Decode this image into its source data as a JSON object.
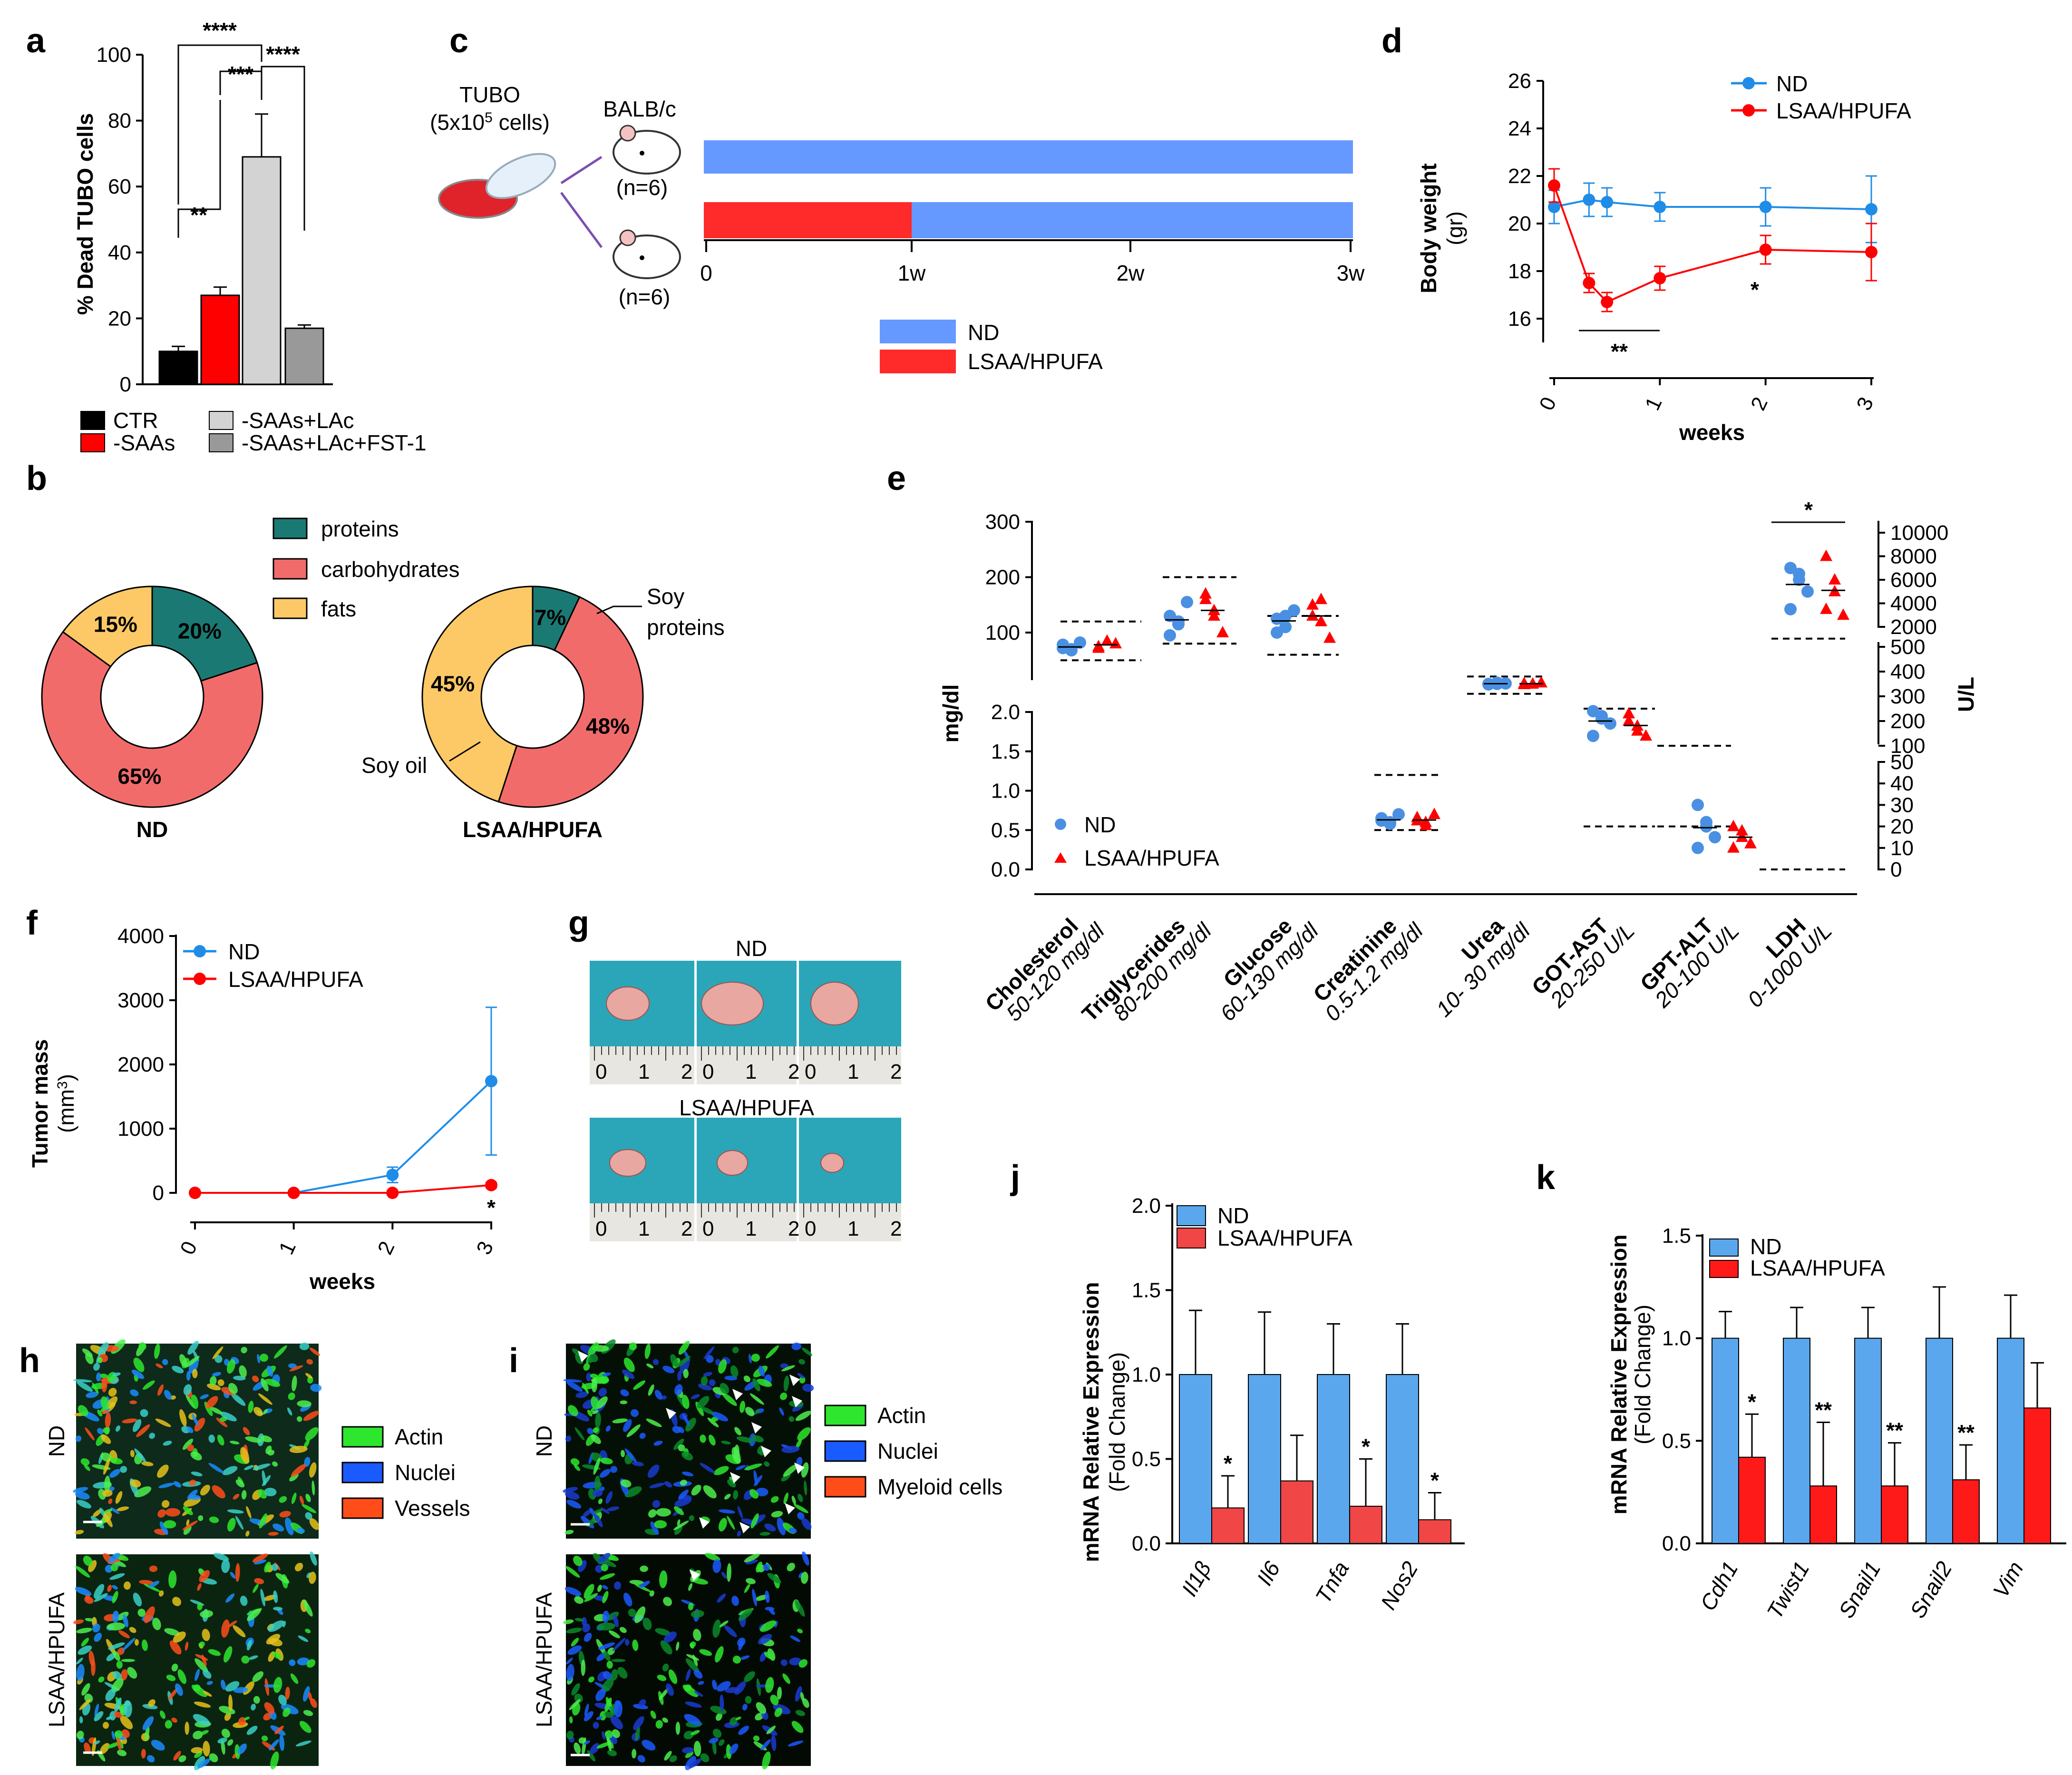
{
  "panels": {
    "a": "a",
    "b": "b",
    "c": "c",
    "d": "d",
    "e": "e",
    "f": "f",
    "g": "g",
    "h": "h",
    "i": "i",
    "j": "j",
    "k": "k"
  },
  "chart_data": [
    {
      "id": "a",
      "type": "bar",
      "categories": [
        "CTR",
        "-SAAs",
        "-SAAs+LAc",
        "-SAAs+LAc+FST-1"
      ],
      "values": [
        10,
        27,
        69,
        17
      ],
      "errors": [
        1.5,
        2.5,
        13,
        1
      ],
      "colors": [
        "#000000",
        "#ff0000",
        "#d3d3d3",
        "#999999"
      ],
      "ylabel": "% Dead TUBO cells",
      "ylim": [
        0,
        100
      ],
      "yticks": [
        "0",
        "20",
        "40",
        "60",
        "80",
        "100"
      ],
      "significance": [
        "****",
        "***",
        "****",
        "**"
      ]
    },
    {
      "id": "b",
      "type": "pie",
      "legend": [
        "proteins",
        "carbohydrates",
        "fats"
      ],
      "colors": [
        "#1a7a73",
        "#f26b6b",
        "#fcc966"
      ],
      "charts": [
        {
          "name": "ND",
          "slices": [
            20,
            65,
            15
          ],
          "labels": [
            "20%",
            "65%",
            "15%"
          ]
        },
        {
          "name": "LSAA/HPUFA",
          "slices": [
            7,
            48,
            45
          ],
          "labels": [
            "7%",
            "48%",
            "45%"
          ]
        }
      ],
      "annotations": [
        "Soy",
        "proteins",
        "Soy oil"
      ]
    },
    {
      "id": "c",
      "type": "other",
      "cells": "TUBO",
      "cell_count_pre": "(5x10",
      "cell_count_sup": "5",
      "cell_count_post": " cells)",
      "mouse": "BALB/c",
      "n1": "(n=6)",
      "n2": "(n=6)",
      "timeline_ticks": [
        "0",
        "1w",
        "2w",
        "3w"
      ],
      "legend": [
        "ND",
        "LSAA/HPUFA"
      ],
      "colors": [
        "#6699ff",
        "#ff2a2a"
      ]
    },
    {
      "id": "d",
      "type": "line",
      "x": [
        0,
        0.33,
        0.5,
        1,
        2,
        3
      ],
      "series": [
        {
          "name": "ND",
          "color": "#1f8de8",
          "values": [
            20.7,
            21.0,
            20.9,
            20.7,
            20.7,
            20.6
          ],
          "errors": [
            0.7,
            0.7,
            0.6,
            0.6,
            0.8,
            1.4
          ]
        },
        {
          "name": "LSAA/HPUFA",
          "color": "#ff0000",
          "values": [
            21.6,
            17.5,
            16.7,
            17.7,
            18.9,
            18.8
          ],
          "errors": [
            0.7,
            0.4,
            0.4,
            0.5,
            0.6,
            1.2
          ]
        }
      ],
      "ylabel": "Body weight",
      "ylabel2": "(gr)",
      "xlabel": "weeks",
      "ylim": [
        15,
        26
      ],
      "yticks": [
        "16",
        "18",
        "20",
        "22",
        "24",
        "26"
      ],
      "xticks": [
        "0",
        "1",
        "2",
        "3"
      ],
      "significance": [
        "**",
        "*"
      ]
    },
    {
      "id": "e",
      "type": "scatter",
      "categories": [
        "Cholesterol",
        "Triglycerides",
        "Glucose",
        "Creatinine",
        "Urea",
        "GOT-AST",
        "GPT-ALT",
        "LDH"
      ],
      "ranges": [
        "50-120 mg/dl",
        "80-200 mg/dl",
        "60-130 mg/dl",
        "0.5-1.2 mg/dl",
        "10- 30 mg/dl",
        "20-250 U/L",
        "20-100 U/L",
        "0-1000 U/L"
      ],
      "ylabel_left": "mg/dl",
      "ylabel_right": "U/L",
      "yticks_left_top": [
        "100",
        "200",
        "300"
      ],
      "yticks_left_bottom": [
        "0.0",
        "0.5",
        "1.0",
        "1.5",
        "2.0"
      ],
      "yticks_right_top": [
        "2000",
        "4000",
        "6000",
        "8000",
        "10000"
      ],
      "yticks_right_mid": [
        "100",
        "200",
        "300",
        "400",
        "500"
      ],
      "yticks_right_bottom": [
        "0",
        "10",
        "20",
        "30",
        "40",
        "50"
      ],
      "legend": [
        "ND",
        "LSAA/HPUFA"
      ],
      "significance": [
        "*"
      ]
    },
    {
      "id": "f",
      "type": "line",
      "x": [
        0,
        1,
        2,
        3
      ],
      "series": [
        {
          "name": "ND",
          "color": "#1f8de8",
          "values": [
            0,
            0,
            280,
            1740
          ],
          "errors": [
            0,
            0,
            120,
            1150
          ]
        },
        {
          "name": "LSAA/HPUFA",
          "color": "#ff0000",
          "values": [
            0,
            0,
            0,
            120
          ],
          "errors": [
            0,
            0,
            0,
            40
          ]
        }
      ],
      "ylabel": "Tumor mass",
      "ylabel2_pre": "(mm",
      "ylabel2_sup": "3",
      "ylabel2_post": ")",
      "xlabel": "weeks",
      "ylim": [
        0,
        4000
      ],
      "yticks": [
        "0",
        "1000",
        "2000",
        "3000",
        "4000"
      ],
      "xticks": [
        "0",
        "1",
        "2",
        "3"
      ],
      "significance": [
        "*"
      ]
    },
    {
      "id": "g",
      "type": "other",
      "titles": [
        "ND",
        "LSAA/HPUFA"
      ],
      "ruler": [
        "0",
        "1",
        "2"
      ]
    },
    {
      "id": "h",
      "type": "other",
      "rows": [
        "ND",
        "LSAA/HPUFA"
      ],
      "legend": [
        "Actin",
        "Nuclei",
        "Vessels"
      ],
      "colors": [
        "#2ee62e",
        "#1a5bff",
        "#ff4d1a"
      ]
    },
    {
      "id": "i",
      "type": "other",
      "rows": [
        "ND",
        "LSAA/HPUFA"
      ],
      "legend": [
        "Actin",
        "Nuclei",
        "Myeloid cells"
      ],
      "colors": [
        "#2ee62e",
        "#1a5bff",
        "#ff4d1a"
      ]
    },
    {
      "id": "j",
      "type": "bar",
      "categories": [
        "Il1β",
        "Il6",
        "Tnfa",
        "Nos2"
      ],
      "series": [
        {
          "name": "ND",
          "color": "#5aa7ee",
          "values": [
            1.0,
            1.0,
            1.0,
            1.0
          ],
          "errors": [
            0.38,
            0.37,
            0.3,
            0.3
          ]
        },
        {
          "name": "LSAA/HPUFA",
          "color": "#f04646",
          "values": [
            0.21,
            0.37,
            0.22,
            0.14
          ],
          "errors": [
            0.19,
            0.27,
            0.28,
            0.16
          ]
        }
      ],
      "ylabel": "mRNA Relative Expression",
      "ylabel2": "(Fold Change)",
      "ylim": [
        0,
        2.0
      ],
      "yticks": [
        "0.0",
        "0.5",
        "1.0",
        "1.5",
        "2.0"
      ],
      "significance": [
        "*",
        "",
        "*",
        "*"
      ]
    },
    {
      "id": "k",
      "type": "bar",
      "categories": [
        "Cdh1",
        "Twist1",
        "Snail1",
        "Snail2",
        "Vim"
      ],
      "series": [
        {
          "name": "ND",
          "color": "#5aa7ee",
          "values": [
            1.0,
            1.0,
            1.0,
            1.0,
            1.0
          ],
          "errors": [
            0.13,
            0.15,
            0.15,
            0.25,
            0.21
          ]
        },
        {
          "name": "LSAA/HPUFA",
          "color": "#ff1a1a",
          "values": [
            0.42,
            0.28,
            0.28,
            0.31,
            0.66
          ],
          "errors": [
            0.21,
            0.31,
            0.21,
            0.17,
            0.22
          ]
        }
      ],
      "ylabel": "mRNA Relative Expression",
      "ylabel2": "(Fold Change)",
      "ylim": [
        0,
        1.5
      ],
      "yticks": [
        "0.0",
        "0.5",
        "1.0",
        "1.5"
      ],
      "significance": [
        "*",
        "**",
        "**",
        "**",
        ""
      ]
    }
  ]
}
